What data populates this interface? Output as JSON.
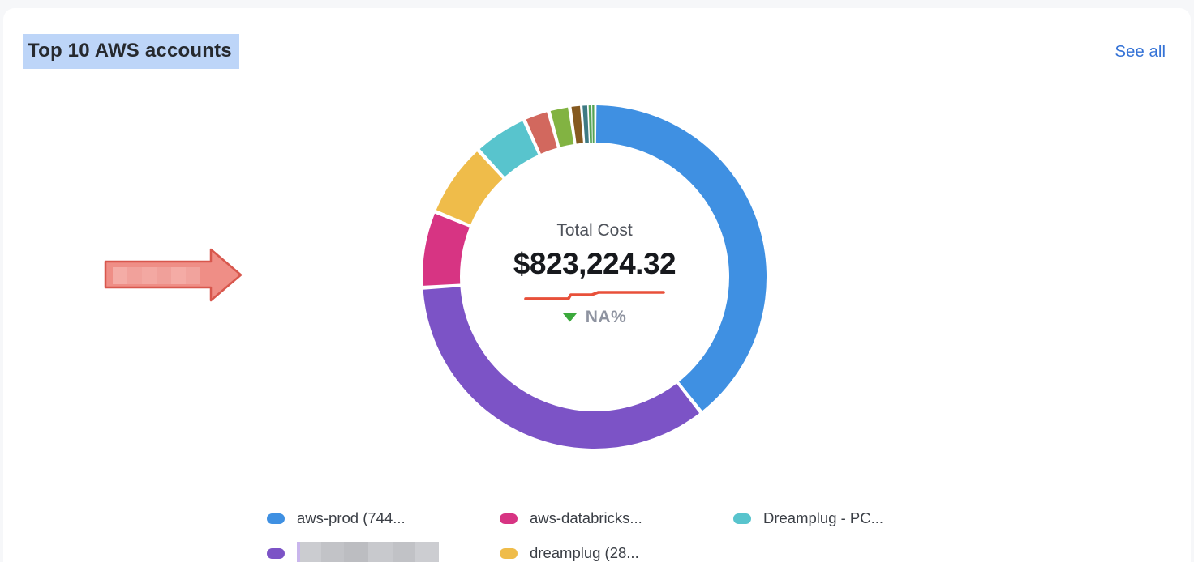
{
  "page": {
    "background": "#f6f7f9",
    "card_background": "#ffffff"
  },
  "header": {
    "title": "Top 10 AWS accounts",
    "title_highlight_color": "#bdd5f8",
    "see_all_label": "See all",
    "see_all_color": "#3472d6"
  },
  "donut_center": {
    "label": "Total Cost",
    "value": "$823,224.32",
    "delta_value": "NA%",
    "delta_direction": "down",
    "delta_arrow_color": "#3ba93c",
    "delta_text_color": "#8e93a0",
    "sparkline_color": "#e8503a",
    "sparkline_points": [
      [
        2,
        14
      ],
      [
        55,
        14
      ],
      [
        58,
        9
      ],
      [
        84,
        9
      ],
      [
        92,
        6
      ],
      [
        173,
        6
      ]
    ]
  },
  "chart_data": {
    "type": "pie",
    "title": "Top 10 AWS accounts",
    "center_label": "Total Cost",
    "center_value": "$823,224.32",
    "legend_position": "bottom",
    "donut": true,
    "segments": [
      {
        "label": "aws-prod (744...",
        "color": "#3f90e2",
        "percent": 39.4
      },
      {
        "label": "[redacted]",
        "color": "#7c53c6",
        "percent": 34.6
      },
      {
        "label": "aws-databricks...",
        "color": "#d73483",
        "percent": 7.2
      },
      {
        "label": "dreamplug (28...",
        "color": "#efbc4a",
        "percent": 7.0
      },
      {
        "label": "Dreamplug - PC...",
        "color": "#58c4cd",
        "percent": 5.1
      },
      {
        "label": "",
        "color": "#d2685e",
        "percent": 2.4
      },
      {
        "label": "",
        "color": "#82b342",
        "percent": 2.0
      },
      {
        "label": "",
        "color": "#85591f",
        "percent": 1.1
      },
      {
        "label": "",
        "color": "#3e7a83",
        "percent": 0.6
      },
      {
        "label": "",
        "color": "#55a356",
        "percent": 0.35
      },
      {
        "label": "",
        "color": "#55a356",
        "percent": 0.25
      }
    ]
  },
  "legend": {
    "rows": [
      [
        {
          "label": "aws-prod (744...",
          "color": "#3f90e2",
          "redacted": false
        },
        {
          "label": "aws-databricks...",
          "color": "#d73483",
          "redacted": false
        },
        {
          "label": "Dreamplug - PC...",
          "color": "#58c4cd",
          "redacted": false
        }
      ],
      [
        {
          "label": "",
          "color": "#7c53c6",
          "redacted": true
        },
        {
          "label": "dreamplug (28...",
          "color": "#efbc4a",
          "redacted": false
        }
      ]
    ]
  },
  "annotation_arrow": {
    "fill": "#ef8e86",
    "stroke": "#d8574d",
    "redacted": true
  }
}
